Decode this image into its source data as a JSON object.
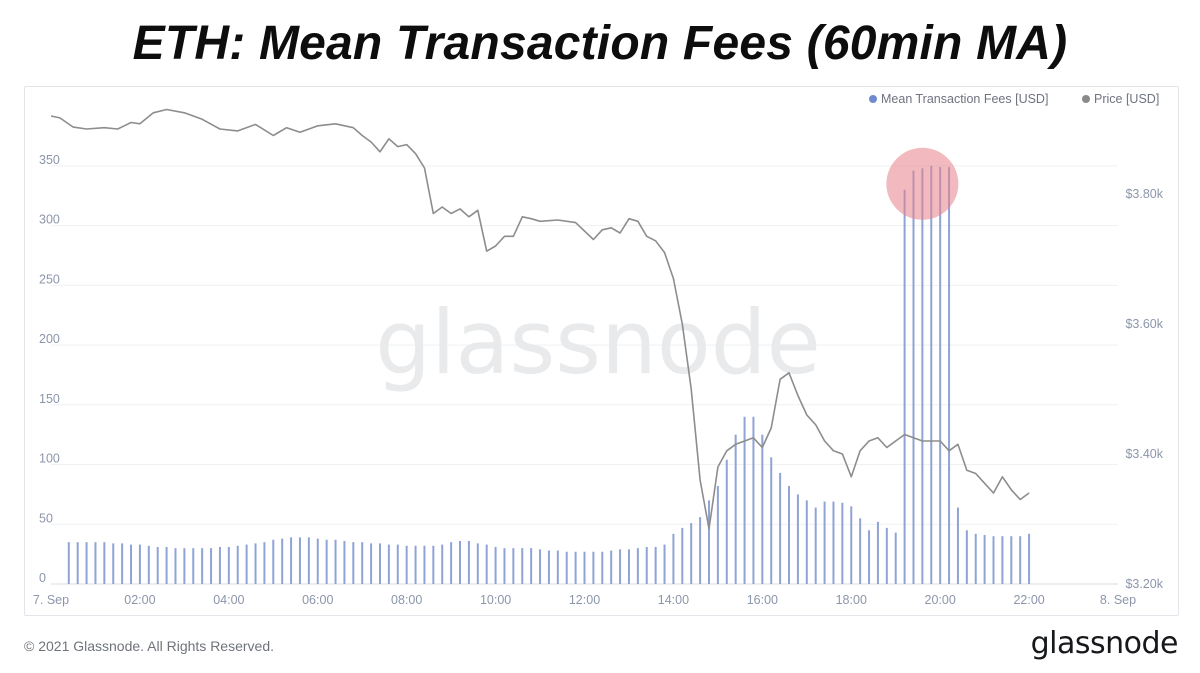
{
  "title": "ETH: Mean Transaction Fees (60min MA)",
  "footer": {
    "copyright": "© 2021 Glassnode. All Rights Reserved.",
    "brand": "glassnode"
  },
  "watermark": "glassnode",
  "colors": {
    "fees_bar": "#8fa3d6",
    "price_line": "#8d8d8d",
    "highlight": "#e8828a",
    "legend_fees_dot": "#6f8ad0",
    "legend_price_dot": "#8a8a8a"
  },
  "chart_data": {
    "type": "bar",
    "legend_placement": "top-right",
    "grid": true,
    "legend": [
      {
        "name": "Mean Transaction Fees [USD]",
        "color": "#6f8ad0"
      },
      {
        "name": "Price [USD]",
        "color": "#8a8a8a"
      }
    ],
    "x_ticks": [
      "7. Sep",
      "02:00",
      "04:00",
      "06:00",
      "08:00",
      "10:00",
      "12:00",
      "14:00",
      "16:00",
      "18:00",
      "20:00",
      "22:00",
      "8. Sep"
    ],
    "x_range_hours": [
      0,
      24
    ],
    "y_left": {
      "ticks": [
        "0",
        "50",
        "100",
        "150",
        "200",
        "250",
        "300",
        "350"
      ],
      "range": [
        0,
        370
      ]
    },
    "y_right": {
      "ticks": [
        "$3.20k",
        "$3.40k",
        "$3.60k",
        "$3.80k"
      ],
      "range": [
        3200,
        3880
      ]
    },
    "series": [
      {
        "name": "Mean Transaction Fees [USD]",
        "type": "bar",
        "axis": "left",
        "x_hours": [
          0.4,
          0.6,
          0.8,
          1.0,
          1.2,
          1.4,
          1.6,
          1.8,
          2.0,
          2.2,
          2.4,
          2.6,
          2.8,
          3.0,
          3.2,
          3.4,
          3.6,
          3.8,
          4.0,
          4.2,
          4.4,
          4.6,
          4.8,
          5.0,
          5.2,
          5.4,
          5.6,
          5.8,
          6.0,
          6.2,
          6.4,
          6.6,
          6.8,
          7.0,
          7.2,
          7.4,
          7.6,
          7.8,
          8.0,
          8.2,
          8.4,
          8.6,
          8.8,
          9.0,
          9.2,
          9.4,
          9.6,
          9.8,
          10.0,
          10.2,
          10.4,
          10.6,
          10.8,
          11.0,
          11.2,
          11.4,
          11.6,
          11.8,
          12.0,
          12.2,
          12.4,
          12.6,
          12.8,
          13.0,
          13.2,
          13.4,
          13.6,
          13.8,
          14.0,
          14.2,
          14.4,
          14.6,
          14.8,
          15.0,
          15.2,
          15.4,
          15.6,
          15.8,
          16.0,
          16.2,
          16.4,
          16.6,
          16.8,
          17.0,
          17.2,
          17.4,
          17.6,
          17.8,
          18.0,
          18.2,
          18.4,
          18.6,
          18.8,
          19.0,
          19.2,
          19.4,
          19.6,
          19.8,
          20.0,
          20.2,
          20.4,
          20.6,
          20.8,
          21.0,
          21.2,
          21.4,
          21.6,
          21.8,
          22.0
        ],
        "values": [
          35,
          35,
          35,
          35,
          35,
          34,
          34,
          33,
          33,
          32,
          31,
          31,
          30,
          30,
          30,
          30,
          30,
          31,
          31,
          32,
          33,
          34,
          35,
          37,
          38,
          39,
          39,
          39,
          38,
          37,
          37,
          36,
          35,
          35,
          34,
          34,
          33,
          33,
          32,
          32,
          32,
          32,
          33,
          35,
          36,
          36,
          34,
          33,
          31,
          30,
          30,
          30,
          30,
          29,
          28,
          28,
          27,
          27,
          27,
          27,
          27,
          28,
          29,
          29,
          30,
          31,
          31,
          33,
          42,
          47,
          51,
          56,
          70,
          82,
          104,
          125,
          140,
          140,
          125,
          106,
          93,
          82,
          75,
          70,
          64,
          69,
          69,
          68,
          65,
          55,
          45,
          52,
          47,
          43,
          330,
          346,
          348,
          350,
          349,
          349,
          64,
          45,
          42,
          41,
          40,
          40,
          40,
          40,
          42
        ]
      },
      {
        "name": "Price [USD]",
        "type": "line",
        "axis": "right",
        "x_hours": [
          0.0,
          0.2,
          0.5,
          0.8,
          1.2,
          1.5,
          1.8,
          2.0,
          2.3,
          2.6,
          3.0,
          3.4,
          3.8,
          4.2,
          4.6,
          5.0,
          5.3,
          5.6,
          6.0,
          6.4,
          6.8,
          7.0,
          7.2,
          7.4,
          7.6,
          7.8,
          8.0,
          8.2,
          8.4,
          8.6,
          8.8,
          9.0,
          9.2,
          9.4,
          9.6,
          9.8,
          10.0,
          10.2,
          10.4,
          10.6,
          10.8,
          11.0,
          11.4,
          11.8,
          12.2,
          12.4,
          12.6,
          12.8,
          13.0,
          13.2,
          13.4,
          13.6,
          13.8,
          14.0,
          14.2,
          14.4,
          14.6,
          14.8,
          15.0,
          15.2,
          15.4,
          15.6,
          15.8,
          16.0,
          16.2,
          16.4,
          16.6,
          16.8,
          17.0,
          17.2,
          17.4,
          17.6,
          17.8,
          18.0,
          18.2,
          18.4,
          18.6,
          18.8,
          19.0,
          19.2,
          19.4,
          19.6,
          19.8,
          20.0,
          20.2,
          20.4,
          20.6,
          20.8,
          21.0,
          21.2,
          21.4,
          21.6,
          21.8,
          22.0
        ],
        "values": [
          3920,
          3917,
          3903,
          3900,
          3902,
          3900,
          3910,
          3908,
          3925,
          3930,
          3925,
          3915,
          3900,
          3897,
          3907,
          3890,
          3902,
          3895,
          3905,
          3908,
          3902,
          3890,
          3880,
          3865,
          3885,
          3873,
          3876,
          3862,
          3840,
          3770,
          3780,
          3770,
          3777,
          3765,
          3775,
          3712,
          3720,
          3735,
          3735,
          3765,
          3762,
          3758,
          3760,
          3756,
          3730,
          3745,
          3748,
          3740,
          3762,
          3758,
          3735,
          3728,
          3710,
          3670,
          3600,
          3500,
          3360,
          3285,
          3380,
          3405,
          3415,
          3420,
          3425,
          3410,
          3440,
          3515,
          3525,
          3490,
          3460,
          3445,
          3420,
          3405,
          3400,
          3365,
          3405,
          3420,
          3425,
          3410,
          3420,
          3430,
          3425,
          3420,
          3420,
          3420,
          3405,
          3415,
          3375,
          3370,
          3355,
          3340,
          3365,
          3345,
          3330,
          3340
        ]
      }
    ],
    "annotations": [
      {
        "type": "circle-highlight",
        "x_hours": 19.6,
        "y_left": 335,
        "note": "spike in mean transaction fees"
      }
    ]
  }
}
